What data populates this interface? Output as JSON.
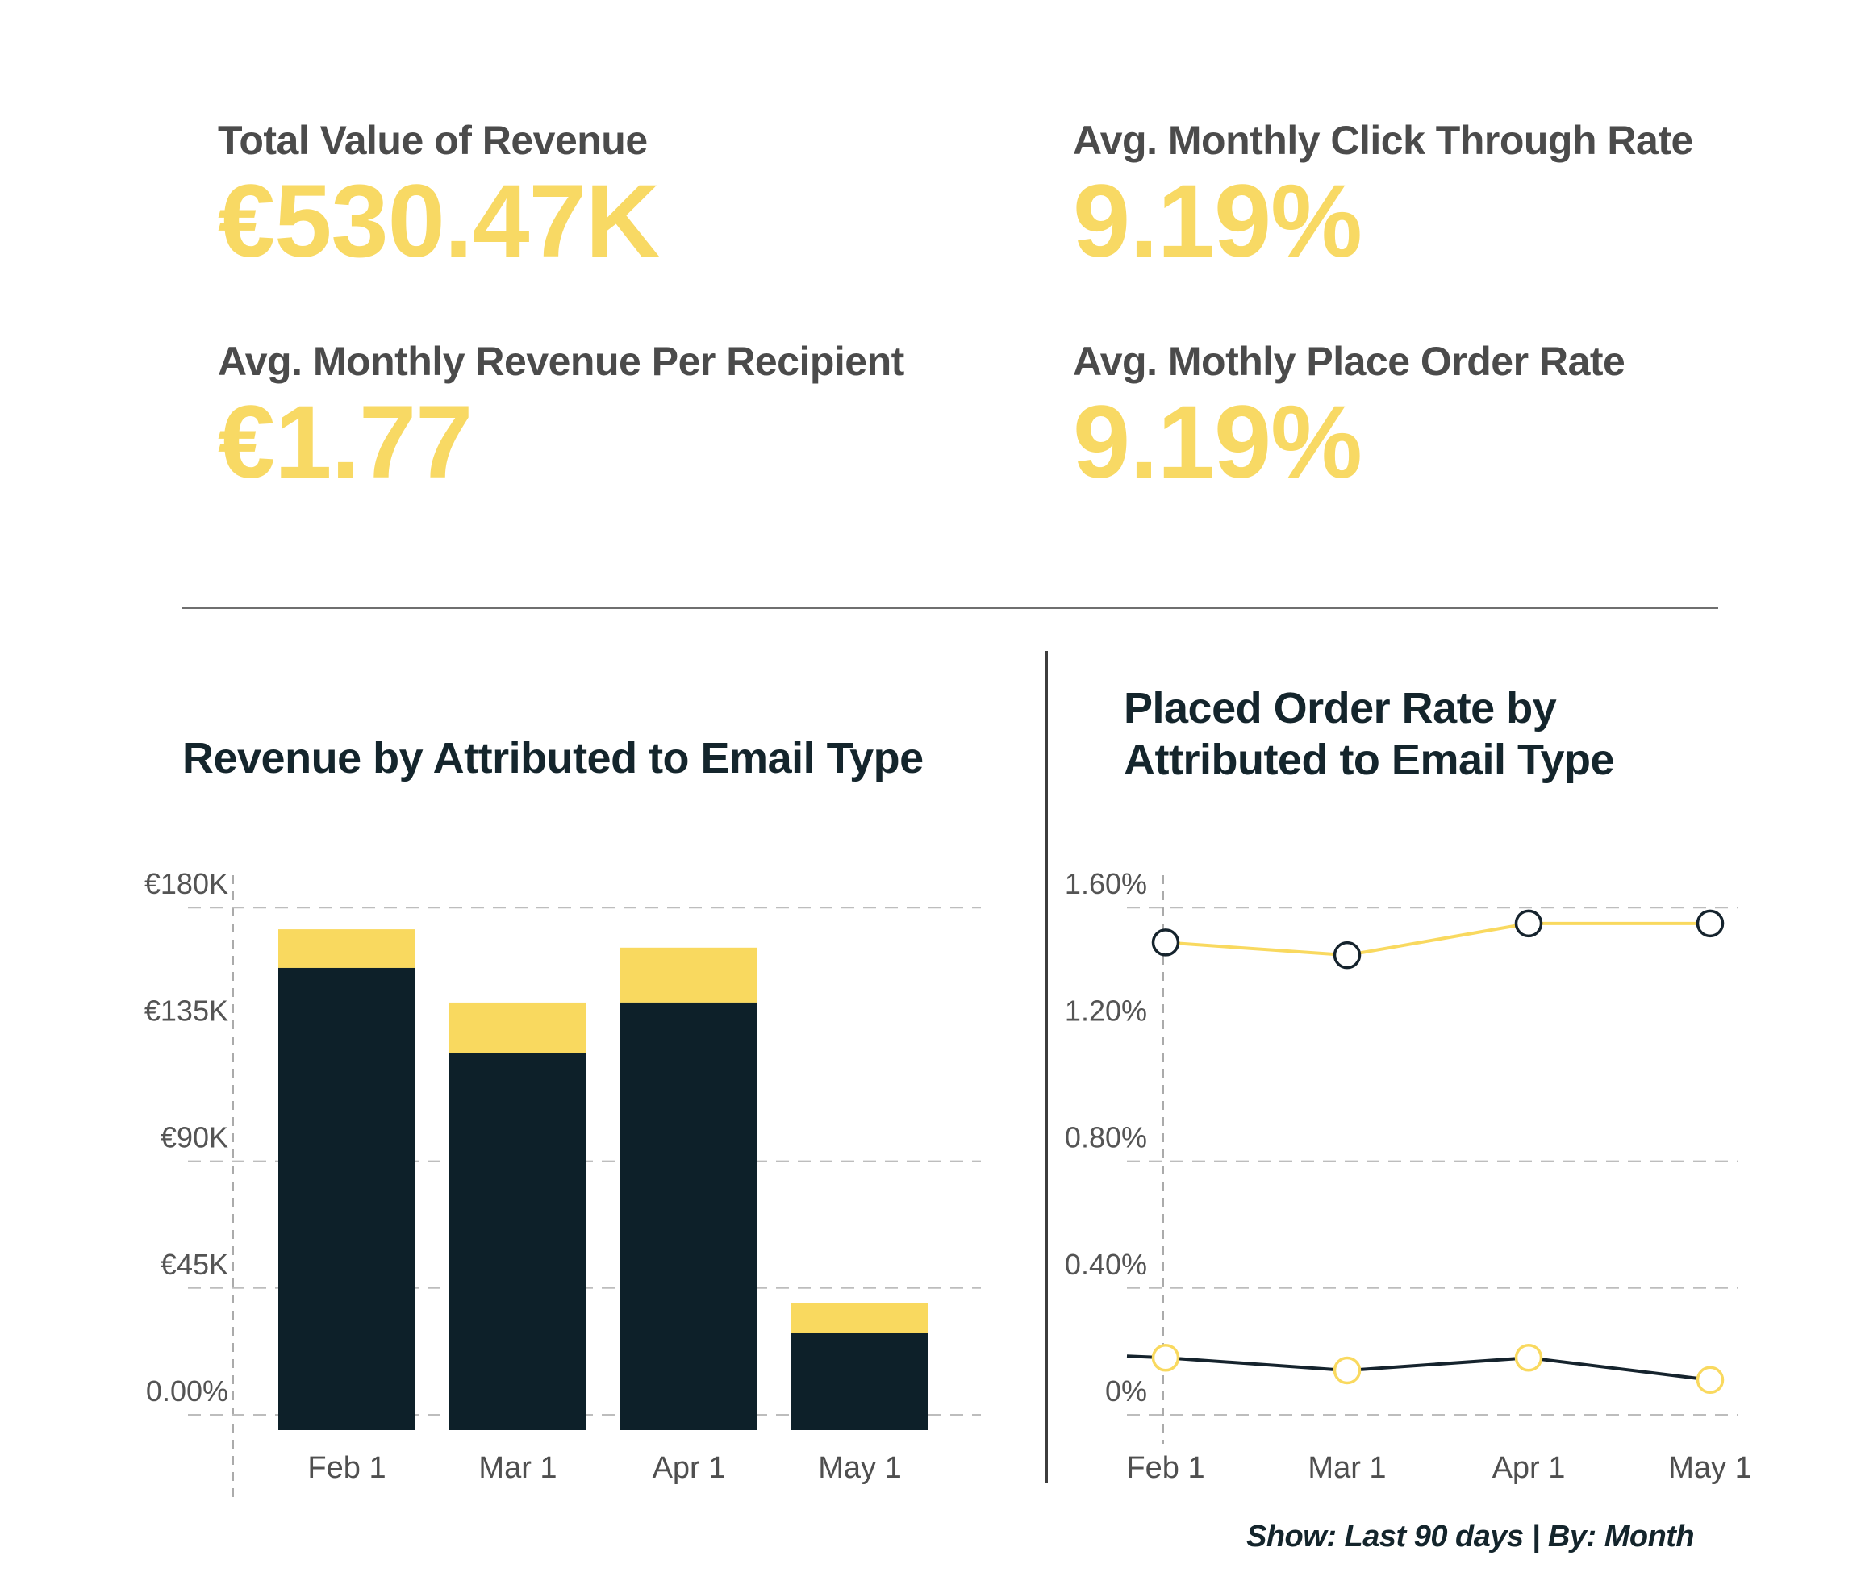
{
  "page": {
    "footer_note": "Show: Last 90 days | By: Month"
  },
  "colors": {
    "kpi_yellow": "#F8D964",
    "chart_yellow": "#F9D95F",
    "bar_dark_navy": "#0D2029",
    "accent_navy": "#15232D",
    "label_gray": "#4B4B4B",
    "axis_gray": "#545454",
    "grid_gray": "#BDBDBD",
    "divider_gray": "#6F6F6F",
    "marker_fill": "#FFFFFF"
  },
  "kpis": [
    {
      "label": "Total Value of Revenue",
      "value": "€530.47K"
    },
    {
      "label": "Avg. Monthly Click Through Rate",
      "value": "9.19%"
    },
    {
      "label": "Avg. Monthly Revenue Per Recipient",
      "value": "€1.77"
    },
    {
      "label": "Avg. Mothly Place Order Rate",
      "value": "9.19%"
    }
  ],
  "panels": {
    "left_title": "Revenue by Attributed to Email Type",
    "right_title_line1": "Placed Order Rate by",
    "right_title_line2": "Attributed to Email Type"
  },
  "chart_data": [
    {
      "type": "bar",
      "stacked": true,
      "title": "Revenue by Attributed to Email Type",
      "categories": [
        "Feb 1",
        "Mar 1",
        "Apr 1",
        "May 1"
      ],
      "series": [
        {
          "name": "dark-navy-segment",
          "color_key": "bar_dark_navy",
          "values": [
            158.6,
            128.5,
            146.3,
            29.2
          ]
        },
        {
          "name": "yellow-segment",
          "color_key": "chart_yellow",
          "values": [
            13.7,
            17.8,
            19.5,
            10.3
          ]
        }
      ],
      "unit": "thousand EUR",
      "y_ticks": [
        {
          "value": 180,
          "label": "€180K"
        },
        {
          "value": 135,
          "label": "€135K"
        },
        {
          "value": 90,
          "label": "€90K"
        },
        {
          "value": 45,
          "label": "€45K"
        },
        {
          "value": 0,
          "label": "0.00%"
        }
      ],
      "gridline_values": [
        180,
        90,
        45,
        0
      ],
      "ylim": [
        0,
        180
      ],
      "grid": "dashed-horizontal",
      "legend": "none"
    },
    {
      "type": "line",
      "title": "Placed Order Rate by Attributed to Email Type",
      "categories": [
        "Feb 1",
        "Mar 1",
        "Apr 1",
        "May 1"
      ],
      "series": [
        {
          "name": "yellow-line-navy-markers",
          "line_color_key": "chart_yellow",
          "marker_stroke_key": "accent_navy",
          "values": [
            1.49,
            1.45,
            1.55,
            1.55
          ]
        },
        {
          "name": "navy-line-yellow-markers",
          "line_color_key": "accent_navy",
          "marker_stroke_key": "chart_yellow",
          "values": [
            0.18,
            0.14,
            0.18,
            0.11
          ]
        }
      ],
      "unit": "%",
      "y_ticks": [
        {
          "value": 1.6,
          "label": "1.60%"
        },
        {
          "value": 1.2,
          "label": "1.20%"
        },
        {
          "value": 0.8,
          "label": "0.80%"
        },
        {
          "value": 0.4,
          "label": "0.40%"
        },
        {
          "value": 0,
          "label": "0%"
        }
      ],
      "gridline_values": [
        1.6,
        0.8,
        0.4,
        0
      ],
      "ylim": [
        0,
        1.6
      ],
      "grid": "dashed-horizontal",
      "legend": "none"
    }
  ]
}
